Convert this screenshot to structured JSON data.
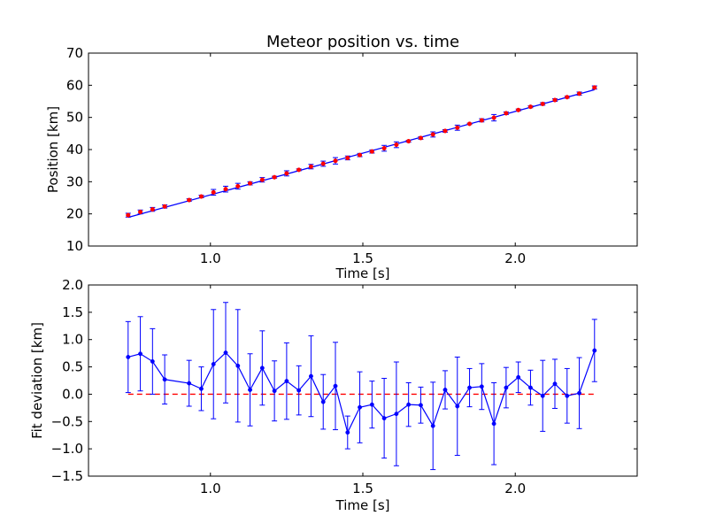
{
  "chart_data": [
    {
      "type": "scatter",
      "title": "Meteor position vs. time",
      "xlabel": "Time [s]",
      "ylabel": "Position [km]",
      "xlim": [
        0.6,
        2.4
      ],
      "ylim": [
        10,
        70
      ],
      "xticks": [
        1.0,
        1.5,
        2.0
      ],
      "xtick_labels": [
        "1.0",
        "1.5",
        "2.0"
      ],
      "yticks": [
        10,
        20,
        30,
        40,
        50,
        60,
        70
      ],
      "ytick_labels": [
        "10",
        "20",
        "30",
        "40",
        "50",
        "60",
        "70"
      ],
      "grid": false,
      "series": [
        {
          "kind": "errorbar-points",
          "color": "#ff0000",
          "x": [
            0.73,
            0.77,
            0.81,
            0.85,
            0.93,
            0.97,
            1.01,
            1.05,
            1.09,
            1.13,
            1.17,
            1.21,
            1.25,
            1.29,
            1.33,
            1.37,
            1.41,
            1.45,
            1.49,
            1.53,
            1.57,
            1.61,
            1.65,
            1.69,
            1.73,
            1.77,
            1.81,
            1.85,
            1.89,
            1.93,
            1.97,
            2.01,
            2.05,
            2.09,
            2.13,
            2.17,
            2.21,
            2.26
          ],
          "y": [
            19.6,
            20.6,
            21.4,
            22.3,
            24.3,
            25.4,
            26.7,
            27.7,
            28.6,
            29.5,
            30.6,
            31.4,
            32.6,
            33.7,
            34.7,
            35.6,
            36.5,
            37.4,
            38.3,
            39.4,
            40.4,
            41.5,
            42.6,
            43.6,
            44.7,
            45.8,
            46.8,
            48.0,
            49.1,
            49.9,
            51.3,
            52.3,
            53.3,
            54.2,
            55.4,
            56.3,
            57.4,
            59.3
          ],
          "yerr": [
            0.6,
            0.6,
            0.6,
            0.5,
            0.4,
            0.4,
            0.9,
            0.9,
            0.9,
            0.5,
            0.7,
            0.3,
            0.8,
            0.3,
            0.7,
            0.8,
            1.0,
            0.6,
            0.5,
            0.5,
            0.9,
            0.9,
            0.3,
            0.4,
            0.8,
            0.4,
            0.8,
            0.2,
            0.5,
            1.0,
            0.4,
            0.3,
            0.3,
            0.4,
            0.4,
            0.3,
            0.5,
            0.5
          ]
        },
        {
          "kind": "line",
          "color": "#0000ff",
          "x": [
            0.73,
            2.26
          ],
          "y": [
            18.9,
            58.6
          ]
        }
      ]
    },
    {
      "type": "line",
      "xlabel": "Time [s]",
      "ylabel": "Fit deviation [km]",
      "xlim": [
        0.6,
        2.4
      ],
      "ylim": [
        -1.5,
        2.0
      ],
      "xticks": [
        1.0,
        1.5,
        2.0
      ],
      "xtick_labels": [
        "1.0",
        "1.5",
        "2.0"
      ],
      "yticks": [
        -1.5,
        -1.0,
        -0.5,
        0.0,
        0.5,
        1.0,
        1.5,
        2.0
      ],
      "ytick_labels": [
        "−1.5",
        "−1.0",
        "−0.5",
        "0.0",
        "0.5",
        "1.0",
        "1.5",
        "2.0"
      ],
      "grid": false,
      "series": [
        {
          "kind": "errorbar-line",
          "color": "#0000ff",
          "x": [
            0.73,
            0.77,
            0.81,
            0.85,
            0.93,
            0.97,
            1.01,
            1.05,
            1.09,
            1.13,
            1.17,
            1.21,
            1.25,
            1.29,
            1.33,
            1.37,
            1.41,
            1.45,
            1.49,
            1.53,
            1.57,
            1.61,
            1.65,
            1.69,
            1.73,
            1.77,
            1.81,
            1.85,
            1.89,
            1.93,
            1.97,
            2.01,
            2.05,
            2.09,
            2.13,
            2.17,
            2.21,
            2.26
          ],
          "y": [
            0.68,
            0.74,
            0.6,
            0.27,
            0.2,
            0.1,
            0.55,
            0.76,
            0.52,
            0.08,
            0.48,
            0.06,
            0.24,
            0.07,
            0.33,
            -0.14,
            0.15,
            -0.7,
            -0.24,
            -0.19,
            -0.44,
            -0.36,
            -0.19,
            -0.2,
            -0.58,
            0.08,
            -0.22,
            0.12,
            0.14,
            -0.54,
            0.12,
            0.31,
            0.12,
            -0.03,
            0.19,
            -0.03,
            0.02,
            0.8
          ],
          "yerr": [
            0.65,
            0.68,
            0.6,
            0.45,
            0.42,
            0.4,
            1.0,
            0.92,
            1.03,
            0.66,
            0.68,
            0.55,
            0.7,
            0.45,
            0.74,
            0.5,
            0.8,
            0.3,
            0.65,
            0.43,
            0.73,
            0.95,
            0.4,
            0.33,
            0.8,
            0.35,
            0.9,
            0.35,
            0.42,
            0.75,
            0.37,
            0.28,
            0.32,
            0.65,
            0.45,
            0.5,
            0.65,
            0.57
          ]
        },
        {
          "kind": "reference-line",
          "style": "dashed",
          "color": "#ff0000",
          "x": [
            0.73,
            2.26
          ],
          "y": [
            0,
            0
          ]
        }
      ]
    }
  ]
}
